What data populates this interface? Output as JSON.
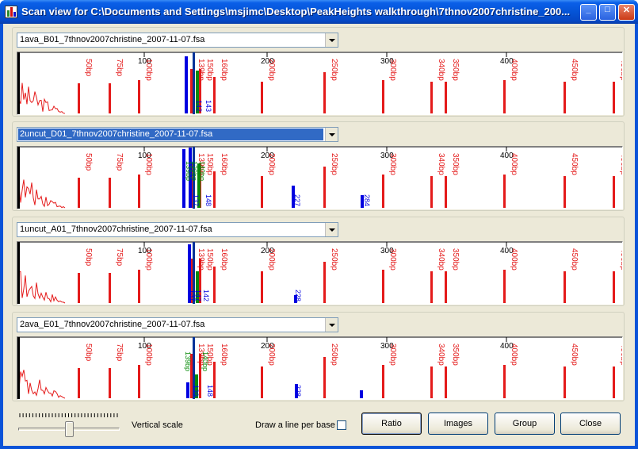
{
  "window": {
    "title": "Scan view for C:\\Documents and Settings\\msjimc\\Desktop\\PeakHeights walkthrough\\7thnov2007christine_200...",
    "minimize_label": "_",
    "maximize_label": "□",
    "close_label": "✕"
  },
  "colors": {
    "titlebar": "#0554d6",
    "trace_red": "#e41a1a",
    "trace_blue": "#0000e0",
    "trace_green": "#0a8a0a",
    "trace_black": "#000000",
    "selection": "#316ac5"
  },
  "scale_labels": [
    "100",
    "200",
    "300",
    "400"
  ],
  "size_markers": [
    "50bp",
    "75bp",
    "100bp",
    "139bp",
    "150bp",
    "160bp",
    "200bp",
    "250bp",
    "300bp",
    "340bp",
    "350bp",
    "400bp",
    "450bp",
    "490bp"
  ],
  "panels": [
    {
      "file": "1ava_B01_7thnov2007christine_2007-11-07.fsa",
      "selected": false,
      "peak_labels": [
        "142",
        "143"
      ]
    },
    {
      "file": "2uncut_D01_7thnov2007christine_2007-11-07.fsa",
      "selected": true,
      "peak_labels": [
        "139bp",
        "139bp",
        "140bp",
        "137",
        "148",
        "227",
        "284"
      ]
    },
    {
      "file": "1uncut_A01_7thnov2007christine_2007-11-07.fsa",
      "selected": false,
      "peak_labels": [
        "147",
        "137",
        "142",
        "228"
      ]
    },
    {
      "file": "2ava_E01_7thnov2007christine_2007-11-07.fsa",
      "selected": false,
      "peak_labels": [
        "139bp",
        "140bp",
        "139",
        "148",
        "228"
      ]
    }
  ],
  "controls": {
    "vertical_scale_label": "Vertical scale",
    "vertical_scale_value": 0.5,
    "draw_line_label": "Draw a line per base",
    "draw_line_checked": false,
    "buttons": [
      "Ratio",
      "Images",
      "Group",
      "Close"
    ]
  }
}
